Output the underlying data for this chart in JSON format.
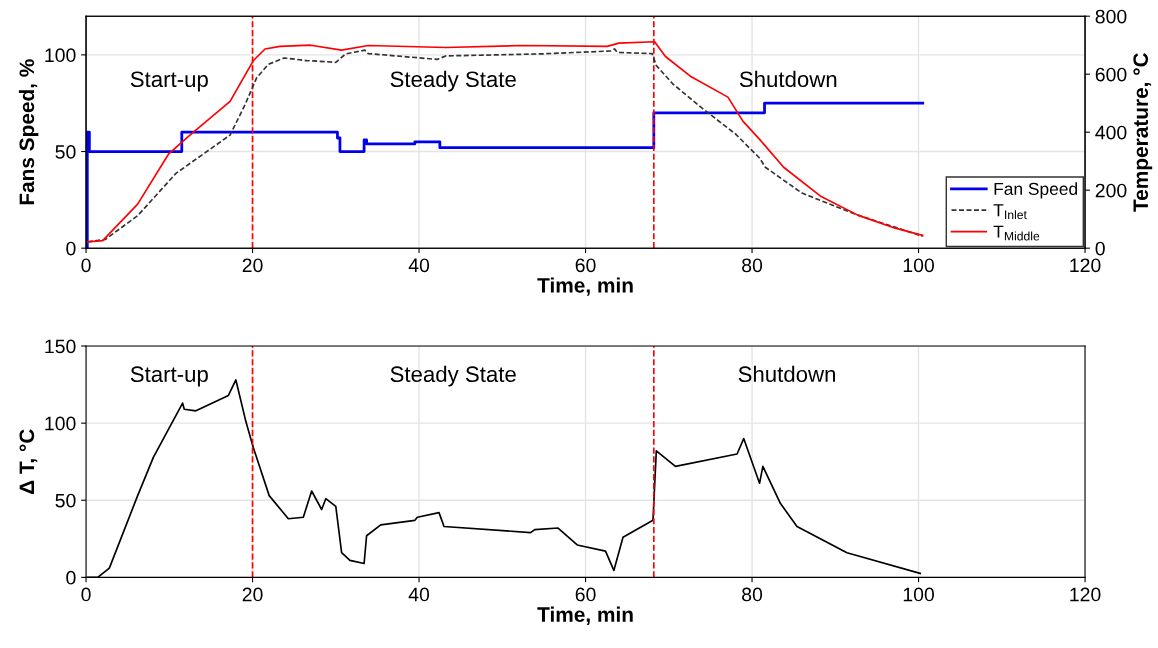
{
  "chart_data": [
    {
      "type": "line",
      "xlabel": "Time, min",
      "ylabel": "Fans Speed, %",
      "y2label": "Temperature, °C",
      "xlim": [
        0,
        120
      ],
      "xticks": [
        0,
        20,
        40,
        60,
        80,
        100,
        120
      ],
      "ylim": [
        0,
        120
      ],
      "yticks": [
        0,
        50,
        100
      ],
      "y2lim": [
        0,
        800
      ],
      "y2ticks": [
        0,
        200,
        400,
        600,
        800
      ],
      "grid": true,
      "legend": "bottom right",
      "ref_lines": [
        {
          "axis": "x",
          "value": 20,
          "color": "#ff0000",
          "line_style": "dashed"
        },
        {
          "axis": "x",
          "value": 68.2,
          "color": "#ff0000",
          "line_style": "dashed"
        }
      ],
      "annotations": [
        "Start-up",
        "Steady State",
        "Shutdown"
      ],
      "series": [
        {
          "name": "Fan Speed",
          "type": "step",
          "color": "#0000ee",
          "x": [
            0,
            0.15,
            0.4,
            11.5,
            30.2,
            30.5,
            33.4,
            33.7,
            39.5,
            42.5,
            68.2,
            81.5,
            100.5
          ],
          "values": [
            0,
            60,
            50,
            60,
            57,
            50,
            56,
            54,
            55,
            52,
            70,
            75,
            75
          ]
        },
        {
          "name": "T$_{Inlet}$",
          "axis": "y2",
          "color": "#333333",
          "line_style": "dashed",
          "x": [
            0.2,
            2.3,
            6.2,
            10.8,
            17.3,
            19.1,
            20.5,
            21.9,
            23.8,
            26.5,
            30,
            31.2,
            33.5,
            33.9,
            42.2,
            43.2,
            54.7,
            63,
            63.5,
            63.8,
            68,
            68.5,
            70.5,
            74,
            78,
            80.9,
            81.6,
            86,
            92.7,
            100.5
          ],
          "values": [
            22,
            30,
            112,
            258,
            390,
            495,
            588,
            634,
            656,
            647,
            641,
            670,
            683,
            671,
            651,
            663,
            670,
            680,
            687,
            675,
            671,
            630,
            566,
            483,
            394,
            311,
            279,
            190,
            114,
            41
          ]
        },
        {
          "name": "T$_{Middle}$",
          "axis": "y2",
          "color": "#ff0000",
          "x": [
            0.2,
            2,
            6.2,
            9.9,
            12.2,
            17.3,
            20.1,
            21.5,
            23.3,
            27,
            30.7,
            33.9,
            43.2,
            52.4,
            62.6,
            64,
            68.3,
            69.6,
            72.7,
            77.1,
            78.9,
            81.1,
            83.8,
            88.3,
            92.7,
            97.2,
            100.5
          ],
          "values": [
            22,
            26,
            152,
            324,
            383,
            506,
            647,
            687,
            696,
            700,
            683,
            699,
            692,
            699,
            696,
            707,
            712,
            661,
            591,
            521,
            438,
            369,
            279,
            178,
            114,
            69,
            44
          ]
        }
      ]
    },
    {
      "type": "line",
      "xlabel": "Time, min",
      "ylabel": "Δ T, °C",
      "xlim": [
        0,
        120
      ],
      "xticks": [
        0,
        20,
        40,
        60,
        80,
        100,
        120
      ],
      "ylim": [
        0,
        150
      ],
      "yticks": [
        0,
        50,
        100,
        150
      ],
      "grid": true,
      "ref_lines": [
        {
          "axis": "x",
          "value": 20,
          "color": "#ff0000",
          "line_style": "dashed"
        },
        {
          "axis": "x",
          "value": 68.2,
          "color": "#ff0000",
          "line_style": "dashed"
        }
      ],
      "annotations": [
        "Start-up",
        "Steady State",
        "Shutdown"
      ],
      "series": [
        {
          "color": "#000000",
          "x": [
            0.2,
            1.4,
            2.8,
            6.2,
            8.1,
            11.6,
            11.8,
            13.2,
            17.1,
            18,
            19.2,
            20.1,
            22,
            24.3,
            26.1,
            27.1,
            28.3,
            28.8,
            30,
            30.7,
            31.7,
            33.4,
            33.7,
            35.4,
            39.5,
            39.8,
            42.4,
            43,
            53.4,
            53.9,
            56.7,
            59,
            62.4,
            63.4,
            64.5,
            68.1,
            68.5,
            70.8,
            78.2,
            79,
            80.9,
            81.3,
            83.4,
            85.4,
            91.4,
            100.2
          ],
          "values": [
            0,
            0,
            6,
            53,
            78,
            113,
            109,
            108,
            118,
            128,
            101,
            84,
            53,
            38,
            39,
            56,
            44,
            51,
            46,
            16,
            11,
            9,
            27,
            34,
            37,
            39,
            42,
            33,
            29,
            31,
            32,
            21,
            17,
            4.5,
            26,
            37,
            82,
            72,
            80,
            90,
            61,
            72,
            48,
            33,
            16,
            2.6
          ]
        }
      ]
    }
  ]
}
